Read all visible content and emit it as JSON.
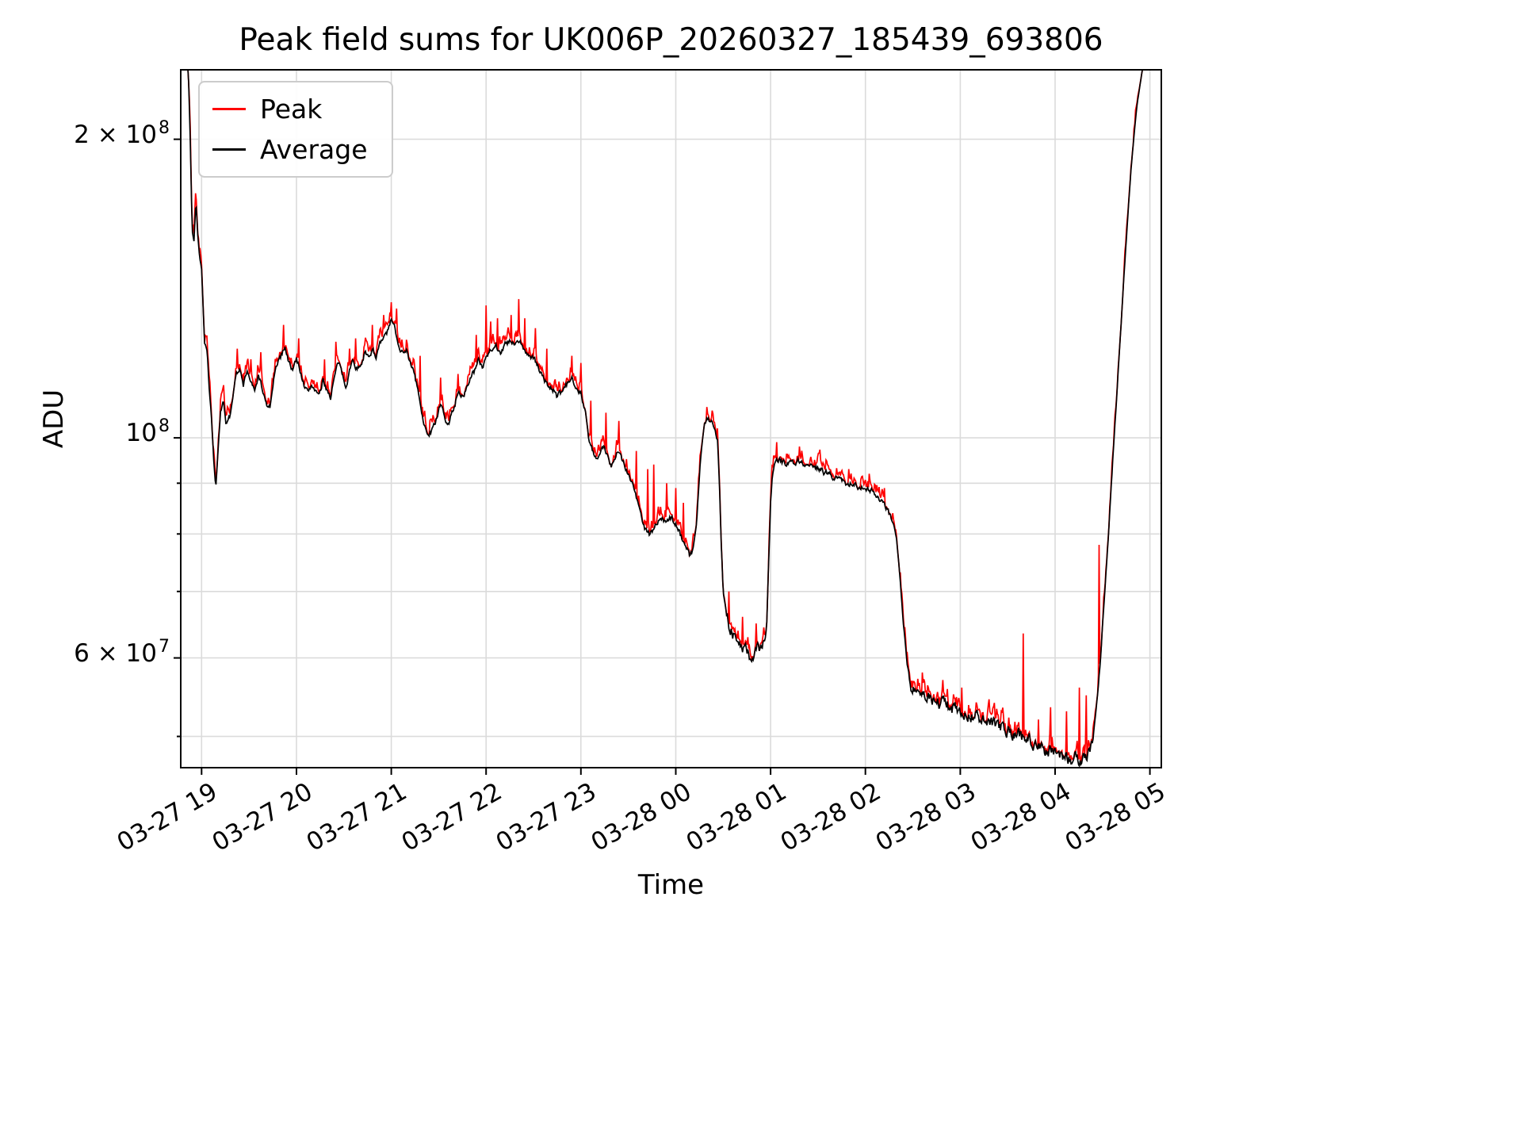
{
  "figure": {
    "background": "#ffffff"
  },
  "chart_data": {
    "type": "line",
    "title": "Peak field sums for UK006P_20260327_185439_693806",
    "xlabel": "Time",
    "ylabel": "ADU",
    "value_units": "ADU",
    "value_scale": 10000000,
    "x_range": [
      0.78,
      11.12
    ],
    "series_t_range": [
      0.8,
      11.12
    ],
    "y_range": [
      4.65,
      23.5
    ],
    "x_ticks": [
      {
        "t": 1,
        "label": "03-27 19"
      },
      {
        "t": 2,
        "label": "03-27 20"
      },
      {
        "t": 3,
        "label": "03-27 21"
      },
      {
        "t": 4,
        "label": "03-27 22"
      },
      {
        "t": 5,
        "label": "03-27 23"
      },
      {
        "t": 6,
        "label": "03-28 00"
      },
      {
        "t": 7,
        "label": "03-28 01"
      },
      {
        "t": 8,
        "label": "03-28 02"
      },
      {
        "t": 9,
        "label": "03-28 03"
      },
      {
        "t": 10,
        "label": "03-28 04"
      },
      {
        "t": 11,
        "label": "03-28 05"
      }
    ],
    "y_ticks": [
      {
        "v": 20,
        "prefix": "2 × 10",
        "sup": "8"
      },
      {
        "v": 10,
        "prefix": "10",
        "sup": "8"
      },
      {
        "v": 6,
        "prefix": "6 × 10",
        "sup": "7"
      }
    ],
    "grid_y": [
      5,
      6,
      7,
      8,
      9,
      10,
      20
    ],
    "grid_color": "#dbdbdb",
    "axis_color": "#000000",
    "legend_position": "upper left",
    "series": [
      {
        "name": "Peak",
        "color": "#ff0000"
      },
      {
        "name": "Average",
        "color": "#000000"
      }
    ],
    "average_anchors": [
      [
        0.8,
        23.5
      ],
      [
        0.86,
        23.5
      ],
      [
        0.88,
        20.0
      ],
      [
        0.9,
        16.2
      ],
      [
        0.92,
        15.8
      ],
      [
        0.94,
        17.3
      ],
      [
        0.96,
        16.0
      ],
      [
        0.98,
        15.2
      ],
      [
        1.0,
        14.8
      ],
      [
        1.03,
        12.5
      ],
      [
        1.06,
        12.2
      ],
      [
        1.08,
        11.2
      ],
      [
        1.1,
        10.6
      ],
      [
        1.13,
        9.4
      ],
      [
        1.15,
        8.9
      ],
      [
        1.17,
        9.6
      ],
      [
        1.2,
        10.6
      ],
      [
        1.23,
        10.9
      ],
      [
        1.26,
        10.3
      ],
      [
        1.3,
        10.5
      ],
      [
        1.33,
        11.0
      ],
      [
        1.36,
        11.6
      ],
      [
        1.4,
        11.7
      ],
      [
        1.44,
        11.3
      ],
      [
        1.48,
        11.7
      ],
      [
        1.52,
        11.4
      ],
      [
        1.56,
        11.1
      ],
      [
        1.6,
        11.6
      ],
      [
        1.64,
        11.2
      ],
      [
        1.68,
        10.8
      ],
      [
        1.72,
        10.7
      ],
      [
        1.76,
        11.4
      ],
      [
        1.8,
        11.9
      ],
      [
        1.84,
        12.1
      ],
      [
        1.88,
        12.4
      ],
      [
        1.92,
        11.9
      ],
      [
        1.96,
        11.7
      ],
      [
        2.0,
        12.0
      ],
      [
        2.04,
        11.7
      ],
      [
        2.08,
        11.3
      ],
      [
        2.12,
        11.1
      ],
      [
        2.16,
        11.3
      ],
      [
        2.2,
        11.2
      ],
      [
        2.24,
        11.0
      ],
      [
        2.28,
        11.4
      ],
      [
        2.32,
        11.2
      ],
      [
        2.36,
        11.0
      ],
      [
        2.4,
        11.5
      ],
      [
        2.44,
        11.9
      ],
      [
        2.48,
        11.6
      ],
      [
        2.52,
        11.3
      ],
      [
        2.56,
        11.7
      ],
      [
        2.6,
        12.0
      ],
      [
        2.64,
        11.7
      ],
      [
        2.68,
        11.9
      ],
      [
        2.72,
        12.2
      ],
      [
        2.76,
        12.0
      ],
      [
        2.8,
        12.3
      ],
      [
        2.84,
        12.1
      ],
      [
        2.88,
        12.4
      ],
      [
        2.92,
        12.6
      ],
      [
        2.96,
        12.8
      ],
      [
        3.0,
        13.1
      ],
      [
        3.04,
        12.9
      ],
      [
        3.08,
        12.4
      ],
      [
        3.12,
        12.2
      ],
      [
        3.16,
        12.3
      ],
      [
        3.2,
        11.9
      ],
      [
        3.24,
        11.6
      ],
      [
        3.28,
        11.2
      ],
      [
        3.32,
        10.6
      ],
      [
        3.36,
        10.2
      ],
      [
        3.4,
        10.1
      ],
      [
        3.44,
        10.2
      ],
      [
        3.48,
        10.5
      ],
      [
        3.52,
        10.8
      ],
      [
        3.56,
        10.5
      ],
      [
        3.6,
        10.3
      ],
      [
        3.64,
        10.6
      ],
      [
        3.68,
        10.9
      ],
      [
        3.72,
        11.1
      ],
      [
        3.76,
        11.0
      ],
      [
        3.8,
        11.3
      ],
      [
        3.84,
        11.5
      ],
      [
        3.88,
        11.7
      ],
      [
        3.92,
        12.0
      ],
      [
        3.96,
        11.8
      ],
      [
        4.0,
        12.1
      ],
      [
        4.05,
        12.3
      ],
      [
        4.1,
        12.4
      ],
      [
        4.15,
        12.2
      ],
      [
        4.2,
        12.4
      ],
      [
        4.25,
        12.5
      ],
      [
        4.3,
        12.4
      ],
      [
        4.35,
        12.5
      ],
      [
        4.4,
        12.3
      ],
      [
        4.45,
        12.1
      ],
      [
        4.5,
        12.0
      ],
      [
        4.55,
        11.8
      ],
      [
        4.6,
        11.5
      ],
      [
        4.65,
        11.3
      ],
      [
        4.7,
        11.2
      ],
      [
        4.75,
        11.0
      ],
      [
        4.8,
        11.1
      ],
      [
        4.85,
        11.3
      ],
      [
        4.9,
        11.5
      ],
      [
        4.95,
        11.3
      ],
      [
        5.0,
        11.1
      ],
      [
        5.05,
        10.6
      ],
      [
        5.08,
        10.0
      ],
      [
        5.12,
        9.7
      ],
      [
        5.16,
        9.5
      ],
      [
        5.2,
        9.6
      ],
      [
        5.24,
        9.8
      ],
      [
        5.28,
        9.6
      ],
      [
        5.32,
        9.4
      ],
      [
        5.36,
        9.6
      ],
      [
        5.4,
        9.7
      ],
      [
        5.44,
        9.5
      ],
      [
        5.48,
        9.3
      ],
      [
        5.52,
        9.1
      ],
      [
        5.56,
        8.9
      ],
      [
        5.6,
        8.6
      ],
      [
        5.64,
        8.3
      ],
      [
        5.68,
        8.1
      ],
      [
        5.72,
        8.0
      ],
      [
        5.76,
        8.1
      ],
      [
        5.8,
        8.2
      ],
      [
        5.85,
        8.3
      ],
      [
        5.9,
        8.2
      ],
      [
        5.95,
        8.3
      ],
      [
        6.0,
        8.2
      ],
      [
        6.05,
        8.0
      ],
      [
        6.1,
        7.8
      ],
      [
        6.15,
        7.6
      ],
      [
        6.18,
        7.7
      ],
      [
        6.22,
        8.2
      ],
      [
        6.26,
        9.5
      ],
      [
        6.3,
        10.3
      ],
      [
        6.33,
        10.5
      ],
      [
        6.36,
        10.4
      ],
      [
        6.4,
        10.3
      ],
      [
        6.44,
        10.0
      ],
      [
        6.46,
        9.0
      ],
      [
        6.48,
        7.8
      ],
      [
        6.5,
        7.0
      ],
      [
        6.54,
        6.6
      ],
      [
        6.58,
        6.4
      ],
      [
        6.62,
        6.3
      ],
      [
        6.66,
        6.2
      ],
      [
        6.7,
        6.15
      ],
      [
        6.75,
        6.1
      ],
      [
        6.8,
        6.0
      ],
      [
        6.85,
        6.1
      ],
      [
        6.9,
        6.15
      ],
      [
        6.94,
        6.2
      ],
      [
        6.96,
        6.5
      ],
      [
        6.98,
        7.5
      ],
      [
        7.0,
        8.6
      ],
      [
        7.02,
        9.2
      ],
      [
        7.05,
        9.5
      ],
      [
        7.1,
        9.5
      ],
      [
        7.15,
        9.4
      ],
      [
        7.2,
        9.5
      ],
      [
        7.25,
        9.45
      ],
      [
        7.3,
        9.5
      ],
      [
        7.35,
        9.4
      ],
      [
        7.4,
        9.45
      ],
      [
        7.45,
        9.35
      ],
      [
        7.5,
        9.3
      ],
      [
        7.55,
        9.25
      ],
      [
        7.6,
        9.2
      ],
      [
        7.65,
        9.15
      ],
      [
        7.7,
        9.1
      ],
      [
        7.75,
        9.05
      ],
      [
        7.8,
        9.0
      ],
      [
        7.85,
        9.0
      ],
      [
        7.9,
        8.95
      ],
      [
        7.95,
        8.9
      ],
      [
        8.0,
        8.9
      ],
      [
        8.05,
        8.85
      ],
      [
        8.1,
        8.8
      ],
      [
        8.15,
        8.7
      ],
      [
        8.2,
        8.6
      ],
      [
        8.25,
        8.4
      ],
      [
        8.3,
        8.2
      ],
      [
        8.33,
        7.9
      ],
      [
        8.36,
        7.3
      ],
      [
        8.4,
        6.5
      ],
      [
        8.44,
        5.9
      ],
      [
        8.48,
        5.65
      ],
      [
        8.52,
        5.6
      ],
      [
        8.56,
        5.55
      ],
      [
        8.6,
        5.5
      ],
      [
        8.7,
        5.45
      ],
      [
        8.8,
        5.4
      ],
      [
        8.9,
        5.35
      ],
      [
        9.0,
        5.3
      ],
      [
        9.1,
        5.26
      ],
      [
        9.2,
        5.22
      ],
      [
        9.3,
        5.17
      ],
      [
        9.4,
        5.12
      ],
      [
        9.5,
        5.07
      ],
      [
        9.6,
        5.02
      ],
      [
        9.7,
        4.97
      ],
      [
        9.8,
        4.92
      ],
      [
        9.9,
        4.86
      ],
      [
        10.0,
        4.82
      ],
      [
        10.1,
        4.78
      ],
      [
        10.2,
        4.76
      ],
      [
        10.3,
        4.75
      ],
      [
        10.36,
        4.82
      ],
      [
        10.4,
        5.0
      ],
      [
        10.44,
        5.4
      ],
      [
        10.48,
        6.0
      ],
      [
        10.52,
        6.9
      ],
      [
        10.56,
        7.9
      ],
      [
        10.6,
        9.2
      ],
      [
        10.65,
        11.0
      ],
      [
        10.7,
        13.2
      ],
      [
        10.75,
        15.8
      ],
      [
        10.8,
        18.6
      ],
      [
        10.86,
        21.5
      ],
      [
        10.92,
        23.5
      ],
      [
        11.12,
        23.5
      ]
    ],
    "peak_spikes": [
      [
        1.38,
        12.3
      ],
      [
        1.52,
        12.0
      ],
      [
        1.62,
        12.2
      ],
      [
        1.86,
        13.0
      ],
      [
        2.02,
        12.6
      ],
      [
        2.3,
        12.0
      ],
      [
        2.42,
        12.5
      ],
      [
        2.56,
        12.3
      ],
      [
        2.62,
        12.6
      ],
      [
        2.8,
        13.0
      ],
      [
        2.92,
        13.3
      ],
      [
        3.0,
        13.7
      ],
      [
        3.06,
        13.5
      ],
      [
        3.3,
        12.1
      ],
      [
        3.52,
        11.5
      ],
      [
        3.7,
        11.6
      ],
      [
        3.9,
        12.7
      ],
      [
        4.0,
        13.6
      ],
      [
        4.05,
        13.1
      ],
      [
        4.12,
        13.2
      ],
      [
        4.26,
        13.3
      ],
      [
        4.34,
        13.8
      ],
      [
        4.41,
        13.2
      ],
      [
        4.52,
        12.9
      ],
      [
        4.64,
        12.3
      ],
      [
        4.9,
        12.1
      ],
      [
        5.0,
        11.9
      ],
      [
        5.1,
        10.9
      ],
      [
        5.26,
        10.6
      ],
      [
        5.4,
        10.4
      ],
      [
        5.58,
        9.7
      ],
      [
        5.7,
        9.3
      ],
      [
        5.77,
        9.4
      ],
      [
        5.9,
        9.0
      ],
      [
        6.0,
        8.9
      ],
      [
        6.08,
        8.6
      ],
      [
        6.56,
        7.0
      ],
      [
        6.7,
        6.6
      ],
      [
        6.85,
        6.5
      ],
      [
        7.06,
        9.9
      ],
      [
        7.3,
        9.8
      ],
      [
        7.58,
        9.5
      ],
      [
        7.82,
        9.3
      ],
      [
        8.04,
        9.2
      ],
      [
        8.2,
        8.9
      ],
      [
        8.6,
        5.8
      ],
      [
        8.82,
        5.7
      ],
      [
        9.02,
        5.6
      ],
      [
        9.3,
        5.45
      ],
      [
        9.66,
        6.35
      ],
      [
        9.82,
        5.2
      ],
      [
        9.95,
        5.35
      ],
      [
        10.12,
        5.3
      ],
      [
        10.26,
        5.6
      ],
      [
        10.33,
        5.5
      ],
      [
        10.46,
        7.8
      ]
    ],
    "noise": {
      "seed": 7,
      "dt": 0.008,
      "amp": 0.006,
      "amp_low": 0.013,
      "low_threshold": 6.6,
      "peak_amp": 0.055,
      "peak_thresh": 0.55
    }
  }
}
